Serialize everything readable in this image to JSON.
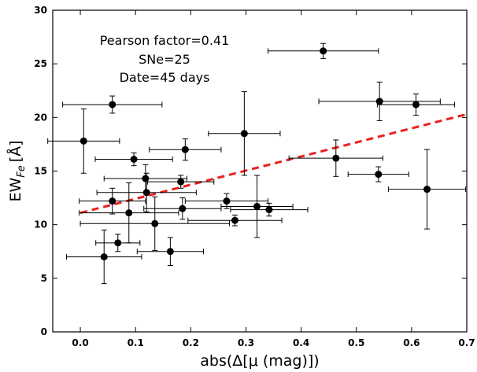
{
  "chart_data": {
    "type": "scatter",
    "title": "",
    "xlabel": "abs(Δ[μ (mag)])",
    "ylabel": "EW",
    "ylabel_subscript": "Fe",
    "ylabel_unit": "[Å]",
    "xlim": [
      -0.05,
      0.7
    ],
    "ylim": [
      0,
      30
    ],
    "xticks": [
      "0.0",
      "0.1",
      "0.2",
      "0.3",
      "0.4",
      "0.5",
      "0.6",
      "0.7"
    ],
    "yticks": [
      "0",
      "5",
      "10",
      "15",
      "20",
      "25",
      "30"
    ],
    "grid": false,
    "annotations": [
      "Pearson factor=0.41",
      "SNe=25",
      "Date=45 days"
    ],
    "points": [
      {
        "x": 0.058,
        "y": 21.2,
        "xerr": 0.09,
        "yerr": 0.8
      },
      {
        "x": 0.006,
        "y": 17.8,
        "xerr": 0.065,
        "yerr": 3.0
      },
      {
        "x": 0.097,
        "y": 16.1,
        "xerr": 0.07,
        "yerr": 0.6
      },
      {
        "x": 0.19,
        "y": 17.0,
        "xerr": 0.065,
        "yerr": 1.0
      },
      {
        "x": 0.118,
        "y": 14.3,
        "xerr": 0.075,
        "yerr": 1.3
      },
      {
        "x": 0.182,
        "y": 14.0,
        "xerr": 0.06,
        "yerr": 0.6
      },
      {
        "x": 0.12,
        "y": 13.0,
        "xerr": 0.09,
        "yerr": 1.8
      },
      {
        "x": 0.058,
        "y": 12.2,
        "xerr": 0.06,
        "yerr": 1.2
      },
      {
        "x": 0.088,
        "y": 11.1,
        "xerr": 0.09,
        "yerr": 2.8
      },
      {
        "x": 0.135,
        "y": 10.1,
        "xerr": 0.135,
        "yerr": 2.5
      },
      {
        "x": 0.185,
        "y": 11.5,
        "xerr": 0.07,
        "yerr": 1.0
      },
      {
        "x": 0.068,
        "y": 8.3,
        "xerr": 0.04,
        "yerr": 0.8
      },
      {
        "x": 0.043,
        "y": 7.0,
        "xerr": 0.068,
        "yerr": 2.5
      },
      {
        "x": 0.163,
        "y": 7.5,
        "xerr": 0.06,
        "yerr": 1.3
      },
      {
        "x": 0.265,
        "y": 12.2,
        "xerr": 0.075,
        "yerr": 0.7
      },
      {
        "x": 0.28,
        "y": 10.4,
        "xerr": 0.085,
        "yerr": 0.5
      },
      {
        "x": 0.32,
        "y": 11.7,
        "xerr": 0.065,
        "yerr": 2.9
      },
      {
        "x": 0.342,
        "y": 11.4,
        "xerr": 0.07,
        "yerr": 0.6
      },
      {
        "x": 0.297,
        "y": 18.5,
        "xerr": 0.065,
        "yerr": 3.9
      },
      {
        "x": 0.44,
        "y": 26.2,
        "xerr": 0.1,
        "yerr": 0.7
      },
      {
        "x": 0.463,
        "y": 16.2,
        "xerr": 0.085,
        "yerr": 1.7
      },
      {
        "x": 0.542,
        "y": 21.5,
        "xerr": 0.11,
        "yerr": 1.8
      },
      {
        "x": 0.608,
        "y": 21.2,
        "xerr": 0.07,
        "yerr": 1.0
      },
      {
        "x": 0.54,
        "y": 14.7,
        "xerr": 0.055,
        "yerr": 0.7
      },
      {
        "x": 0.628,
        "y": 13.3,
        "xerr": 0.07,
        "yerr": 3.7
      }
    ],
    "fit_line": {
      "x": [
        0.0,
        0.7
      ],
      "y": [
        11.1,
        20.3
      ],
      "color": "#e8211c",
      "style": "dashed"
    }
  }
}
